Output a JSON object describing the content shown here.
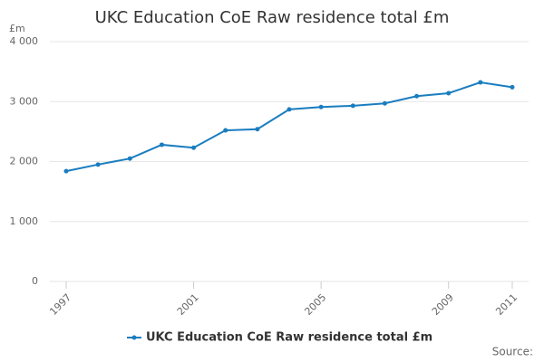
{
  "chart_data": {
    "type": "line",
    "title": "UKC Education CoE Raw residence total £m",
    "y_label": "£m",
    "source": "Source:",
    "x": [
      1997,
      1998,
      1999,
      2000,
      2001,
      2002,
      2003,
      2004,
      2005,
      2006,
      2007,
      2008,
      2009,
      2010,
      2011
    ],
    "series": [
      {
        "name": "UKC Education CoE Raw residence total £m",
        "color": "#1a7dc0",
        "values": [
          1840,
          1950,
          2050,
          2280,
          2230,
          2520,
          2540,
          2870,
          2910,
          2930,
          2970,
          3090,
          3140,
          3320,
          3240
        ]
      }
    ],
    "xlim": [
      1997,
      2011
    ],
    "xticks": [
      1997,
      2001,
      2005,
      2009,
      2011
    ],
    "ylim": [
      0,
      4000
    ],
    "yticks": [
      0,
      {
        "value": 1000,
        "label": "1 000"
      },
      {
        "value": 2000,
        "label": "2 000"
      },
      {
        "value": 3000,
        "label": "3 000"
      },
      {
        "value": 4000,
        "label": "4 000"
      }
    ],
    "grid": true,
    "legend": "bottom"
  }
}
